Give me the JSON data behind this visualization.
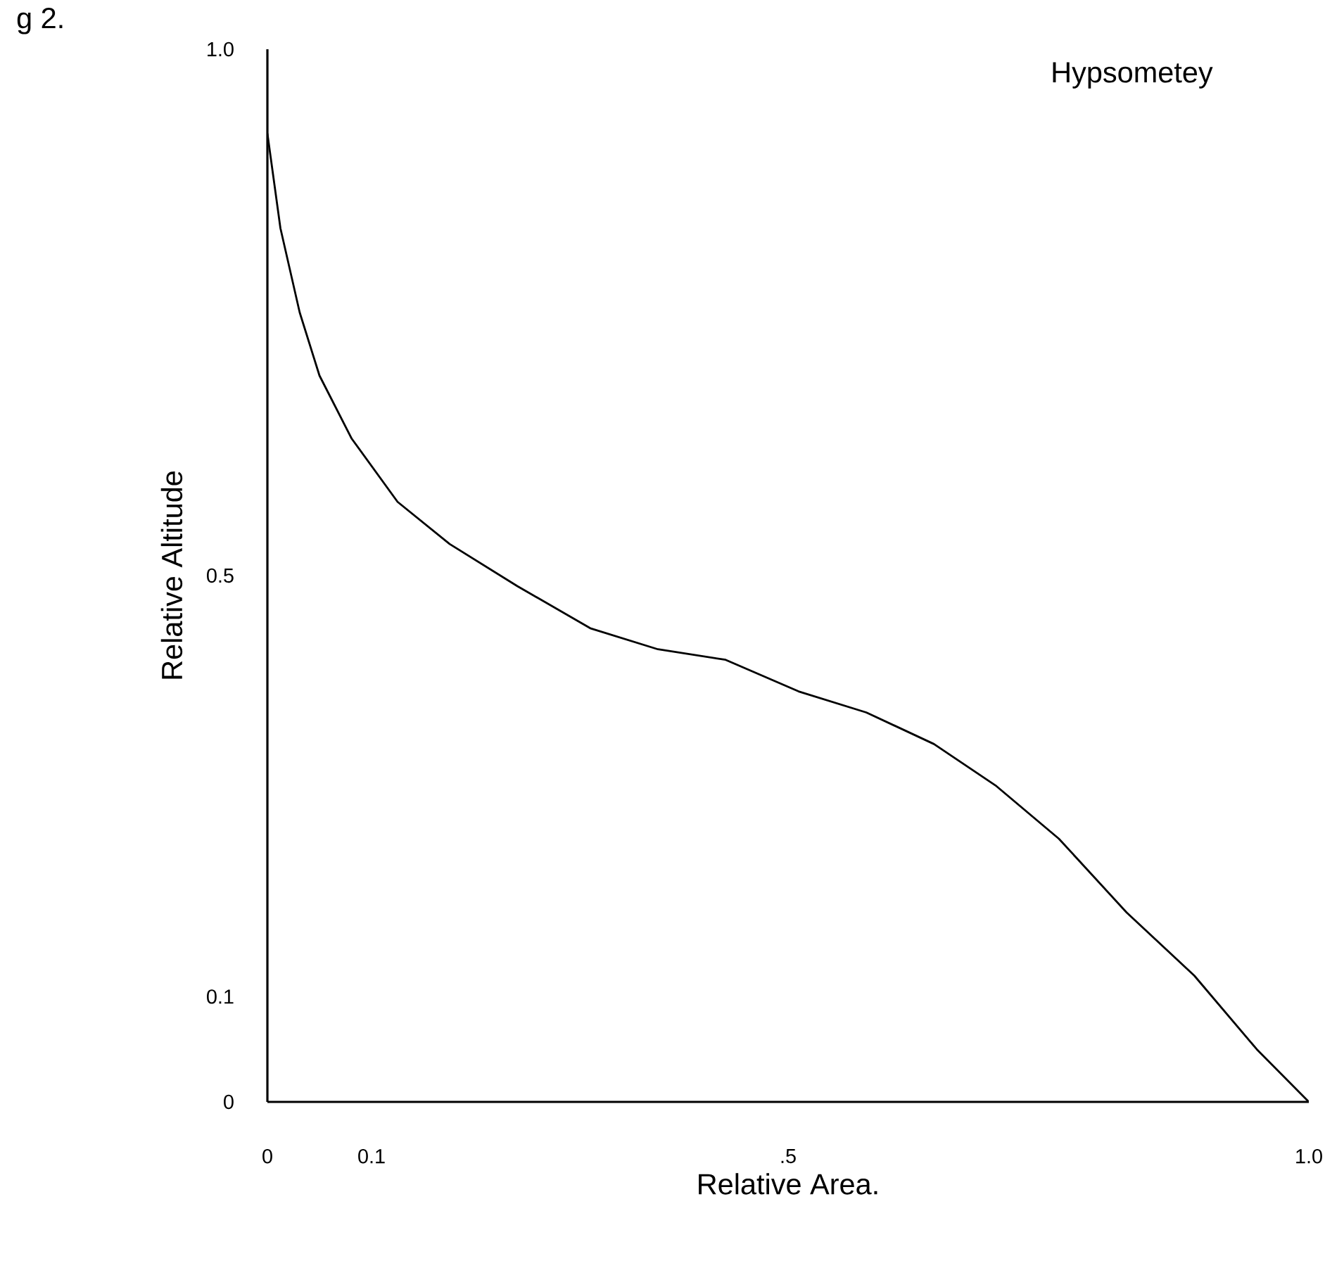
{
  "chart_data": {
    "type": "line",
    "title": "Hypsometey",
    "xlabel": "Relative Area.",
    "ylabel": "Relative Altitude",
    "annotations": [
      "g 2."
    ],
    "x": [
      0,
      0.0125,
      0.031,
      0.05,
      0.081,
      0.125,
      0.175,
      0.24,
      0.31,
      0.375,
      0.44,
      0.51,
      0.575,
      0.64,
      0.7,
      0.76,
      0.825,
      0.89,
      0.95,
      1.0
    ],
    "values": [
      0.92,
      0.83,
      0.75,
      0.69,
      0.63,
      0.57,
      0.53,
      0.49,
      0.45,
      0.43,
      0.42,
      0.39,
      0.37,
      0.34,
      0.3,
      0.25,
      0.18,
      0.12,
      0.05,
      0
    ],
    "color": "#000000",
    "xlim": [
      0,
      1
    ],
    "ylim": [
      0,
      1
    ],
    "xticks": [
      {
        "value": 0,
        "label": "0"
      },
      {
        "value": 0.1,
        "label": "0.1"
      },
      {
        "value": 0.5,
        "label": ".5"
      },
      {
        "value": 1,
        "label": "1.0"
      }
    ],
    "yticks": [
      {
        "value": 0,
        "label": "0"
      },
      {
        "value": 0.1,
        "label": "0.1"
      },
      {
        "value": 0.5,
        "label": "0.5"
      },
      {
        "value": 1,
        "label": "1.0"
      }
    ],
    "marker": "none",
    "line_style": "solid"
  }
}
